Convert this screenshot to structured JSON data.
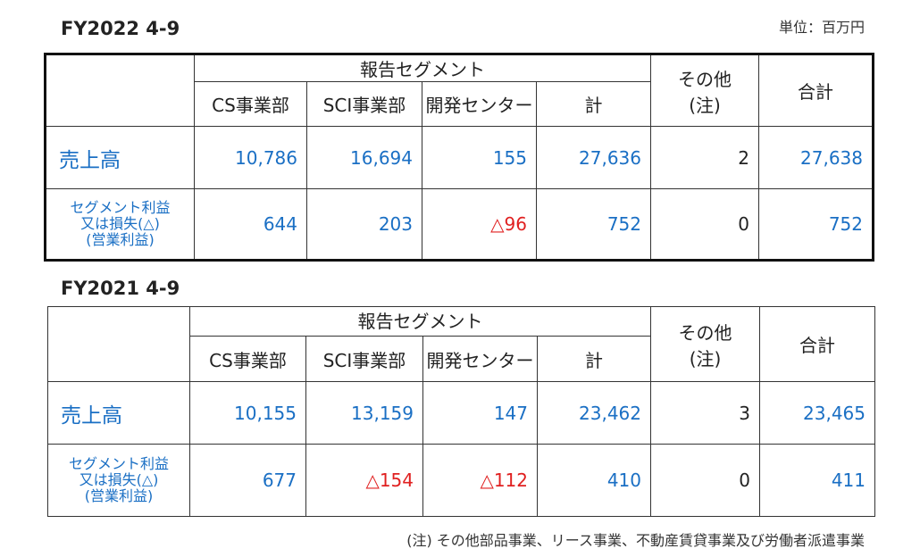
{
  "fy2022": {
    "title": "FY2022 4-9",
    "unit": "単位：百万円",
    "header": {
      "group": "報告セグメント",
      "cs": "CS事業部",
      "sci": "SCI事業部",
      "dev": "開発センター",
      "sum": "計",
      "other_line1": "その他",
      "other_line2": "(注)",
      "total": "合計"
    },
    "sales": {
      "label": "売上高",
      "cs": "10,786",
      "sci": "16,694",
      "dev": "155",
      "sum": "27,636",
      "other": "2",
      "total": "27,638"
    },
    "profit": {
      "label_line1": "セグメント利益",
      "label_line2": "又は損失(△)",
      "label_line3": "(営業利益)",
      "cs": "644",
      "sci": "203",
      "dev": "△96",
      "sum": "752",
      "other": "0",
      "total": "752"
    }
  },
  "fy2021": {
    "title": "FY2021 4-9",
    "header": {
      "group": "報告セグメント",
      "cs": "CS事業部",
      "sci": "SCI事業部",
      "dev": "開発センター",
      "sum": "計",
      "other_line1": "その他",
      "other_line2": "(注)",
      "total": "合計"
    },
    "sales": {
      "label": "売上高",
      "cs": "10,155",
      "sci": "13,159",
      "dev": "147",
      "sum": "23,462",
      "other": "3",
      "total": "23,465"
    },
    "profit": {
      "label_line1": "セグメント利益",
      "label_line2": "又は損失(△)",
      "label_line3": "(営業利益)",
      "cs": "677",
      "sci": "△154",
      "dev": "△112",
      "sum": "410",
      "other": "0",
      "total": "411"
    }
  },
  "note": "(注) その他部品事業、リース事業、不動産賃貸事業及び労働者派遣事業",
  "colors": {
    "value_blue": "#1a6fc4",
    "negative_red": "#e02020"
  }
}
